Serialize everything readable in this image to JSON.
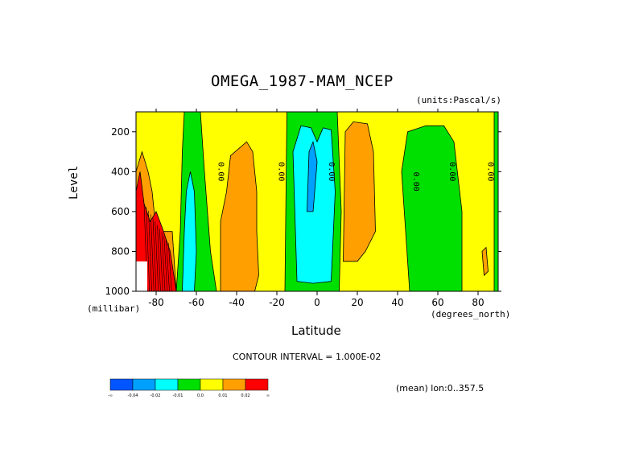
{
  "chart_data": {
    "type": "heatmap",
    "title": "OMEGA_1987-MAM_NCEP",
    "units": "(units:Pascal/s)",
    "xlabel": "Latitude",
    "xunits": "(degrees_north)",
    "ylabel": "Level",
    "yunits": "(millibar)",
    "xlim": [
      -90,
      90
    ],
    "ylim": [
      1000,
      100
    ],
    "xticks": [
      -80,
      -60,
      -40,
      -20,
      0,
      20,
      40,
      60,
      80
    ],
    "xtick_labels": [
      "-80",
      "-60",
      "-40",
      "-20",
      "0",
      "20",
      "40",
      "60",
      "80"
    ],
    "yticks": [
      200,
      400,
      600,
      800,
      1000
    ],
    "ytick_labels": [
      "200",
      "400",
      "600",
      "800",
      "1000"
    ],
    "contour_interval_text": "CONTOUR INTERVAL = 1.000E-02",
    "mean_text": "(mean) lon:0..357.5",
    "colorbar": {
      "colors": [
        "#0055ff",
        "#00a0ff",
        "#00ffff",
        "#00e000",
        "#ffff00",
        "#ffa000",
        "#ff0000"
      ],
      "labels": [
        "-∞",
        "-0.04",
        "-0.02",
        "-0.01",
        "0.0",
        "0.01",
        "0.02",
        "∞"
      ]
    },
    "contour_labels": [
      "0.00",
      "0.00",
      "0.00",
      "0.00",
      "0.00",
      "0.00"
    ],
    "regions": [
      {
        "name": "green-band-60S",
        "class": "-0.01..0.0",
        "color": "#00e000",
        "points": [
          [
            -70,
            1000
          ],
          [
            -68,
            700
          ],
          [
            -67,
            300
          ],
          [
            -66,
            100
          ],
          [
            -58,
            100
          ],
          [
            -56,
            400
          ],
          [
            -53,
            800
          ],
          [
            -50,
            1000
          ]
        ]
      },
      {
        "name": "cyan-band-60S",
        "class": "-0.02..-0.01",
        "color": "#00ffff",
        "points": [
          [
            -67,
            1000
          ],
          [
            -66,
            700
          ],
          [
            -65,
            500
          ],
          [
            -63,
            400
          ],
          [
            -61,
            500
          ],
          [
            -60,
            800
          ],
          [
            -61,
            1000
          ]
        ]
      },
      {
        "name": "orange-band-35S",
        "class": "0.0..0.01",
        "color": "#ffa000",
        "points": [
          [
            -48,
            1000
          ],
          [
            -48,
            650
          ],
          [
            -45,
            500
          ],
          [
            -43,
            320
          ],
          [
            -35,
            250
          ],
          [
            -32,
            300
          ],
          [
            -30,
            500
          ],
          [
            -30,
            700
          ],
          [
            -29,
            920
          ],
          [
            -31,
            1000
          ]
        ]
      },
      {
        "name": "green-band-equator",
        "class": "-0.01..0.0",
        "color": "#00e000",
        "points": [
          [
            -16,
            1000
          ],
          [
            -15,
            100
          ],
          [
            10,
            100
          ],
          [
            12,
            600
          ],
          [
            11,
            1000
          ]
        ]
      },
      {
        "name": "cyan-band-equator",
        "class": "-0.02..-0.01",
        "color": "#00ffff",
        "points": [
          [
            -10,
            950
          ],
          [
            -12,
            300
          ],
          [
            -8,
            170
          ],
          [
            -3,
            180
          ],
          [
            0,
            250
          ],
          [
            3,
            180
          ],
          [
            7,
            190
          ],
          [
            9,
            500
          ],
          [
            7,
            950
          ],
          [
            -2,
            960
          ]
        ]
      },
      {
        "name": "blue-core-equator",
        "class": "-0.04..-0.02",
        "color": "#00a0ff",
        "points": [
          [
            -5,
            600
          ],
          [
            -4,
            300
          ],
          [
            -2,
            250
          ],
          [
            0,
            350
          ],
          [
            -2,
            600
          ]
        ]
      },
      {
        "name": "orange-band-20N",
        "class": "0.0..0.01",
        "color": "#ffa000",
        "points": [
          [
            13,
            850
          ],
          [
            14,
            200
          ],
          [
            18,
            150
          ],
          [
            25,
            160
          ],
          [
            28,
            300
          ],
          [
            29,
            700
          ],
          [
            24,
            800
          ],
          [
            20,
            850
          ]
        ]
      },
      {
        "name": "green-band-60N",
        "class": "-0.01..0.0",
        "color": "#00e000",
        "points": [
          [
            46,
            1000
          ],
          [
            42,
            400
          ],
          [
            45,
            200
          ],
          [
            54,
            170
          ],
          [
            63,
            170
          ],
          [
            68,
            250
          ],
          [
            72,
            600
          ],
          [
            72,
            1000
          ]
        ]
      },
      {
        "name": "green-strip-90N",
        "class": "-0.01..0.0",
        "color": "#00e000",
        "points": [
          [
            88,
            1000
          ],
          [
            88,
            100
          ],
          [
            90,
            100
          ],
          [
            90,
            1000
          ]
        ]
      },
      {
        "name": "orange-spot-85N",
        "class": "0.0..0.01",
        "color": "#ffa000",
        "points": [
          [
            82,
            800
          ],
          [
            84,
            780
          ],
          [
            85,
            900
          ],
          [
            83,
            920
          ]
        ]
      },
      {
        "name": "orange-band-80S",
        "class": "0.0..0.01",
        "color": "#ffa000",
        "points": [
          [
            -90,
            400
          ],
          [
            -87,
            300
          ],
          [
            -84,
            400
          ],
          [
            -82,
            500
          ],
          [
            -80,
            700
          ],
          [
            -72,
            700
          ],
          [
            -70,
            1000
          ],
          [
            -90,
            1000
          ]
        ]
      },
      {
        "name": "red-band-80S",
        "class": "0.01..0.02",
        "color": "#ff0000",
        "points": [
          [
            -90,
            500
          ],
          [
            -88,
            400
          ],
          [
            -86,
            560
          ],
          [
            -83,
            650
          ],
          [
            -80,
            600
          ],
          [
            -77,
            680
          ],
          [
            -73,
            800
          ],
          [
            -70,
            1000
          ],
          [
            -90,
            1000
          ]
        ]
      }
    ]
  }
}
